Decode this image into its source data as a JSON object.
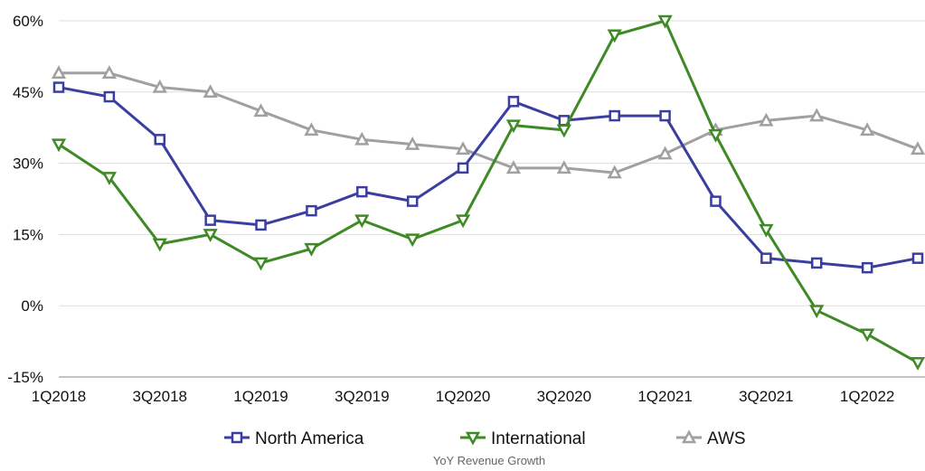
{
  "chart_data": {
    "type": "line",
    "title": "YoY Revenue Growth",
    "xlabel": "",
    "ylabel": "",
    "x": [
      "1Q2018",
      "2Q2018",
      "3Q2018",
      "4Q2018",
      "1Q2019",
      "2Q2019",
      "3Q2019",
      "4Q2019",
      "1Q2020",
      "2Q2020",
      "3Q2020",
      "4Q2020",
      "1Q2021",
      "2Q2021",
      "3Q2021",
      "4Q2021",
      "1Q2022",
      "2Q2022"
    ],
    "x_tick_labels": [
      "1Q2018",
      "3Q2018",
      "1Q2019",
      "3Q2019",
      "1Q2020",
      "3Q2020",
      "1Q2021",
      "3Q2021",
      "1Q2022"
    ],
    "ylim": [
      -15,
      60
    ],
    "y_ticks": [
      -15,
      0,
      15,
      30,
      45,
      60
    ],
    "y_tick_labels": [
      "-15%",
      "0%",
      "15%",
      "30%",
      "45%",
      "60%"
    ],
    "grid": true,
    "legend_position": "bottom",
    "series": [
      {
        "name": "North America",
        "color": "#3a3f9f",
        "marker": "square",
        "values": [
          46,
          44,
          35,
          18,
          17,
          20,
          24,
          22,
          29,
          43,
          39,
          40,
          40,
          22,
          10,
          9,
          8,
          10
        ]
      },
      {
        "name": "International",
        "color": "#3e8a24",
        "marker": "triangle-down",
        "values": [
          34,
          27,
          13,
          15,
          9,
          12,
          18,
          14,
          18,
          38,
          37,
          57,
          60,
          36,
          16,
          -1,
          -6,
          -12
        ]
      },
      {
        "name": "AWS",
        "color": "#a0a0a0",
        "marker": "triangle-up",
        "values": [
          49,
          49,
          46,
          45,
          41,
          37,
          35,
          34,
          33,
          29,
          29,
          28,
          32,
          37,
          39,
          40,
          37,
          33
        ]
      }
    ]
  }
}
